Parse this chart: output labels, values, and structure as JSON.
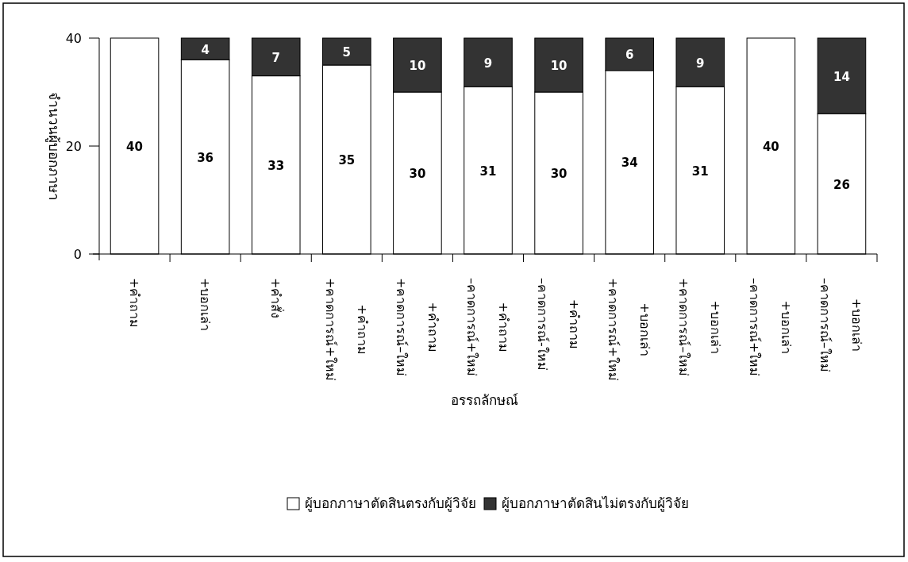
{
  "chart_data": {
    "type": "bar",
    "stacked": true,
    "xlabel": "อรรถลักษณ์",
    "ylabel": "จำนวนผู้บอกภาษา",
    "categories": [
      "+คำถาม",
      "+บอกเล่า",
      "+คำสั่ง",
      "+คาดการณ์+ใหม่\n+คำถาม",
      "+คาดการณ์–ใหม่\n+คำถาม",
      "–คาดการณ์+ใหม่\n+คำถาม",
      "–คาดการณ์-ใหม่\n+คำถาม",
      "+คาดการณ์+ใหม่\n+บอกเล่า",
      "+คาดการณ์–ใหม่\n+บอกเล่า",
      "–คาดการณ์+ใหม่\n+บอกเล่า",
      "–คาดการณ์–ใหม่\n+บอกเล่า"
    ],
    "series": [
      {
        "name": "ผู้บอกภาษาตัดสินตรงกับผู้วิจัย",
        "color": "#ffffff",
        "values": [
          40,
          36,
          33,
          35,
          30,
          31,
          30,
          34,
          31,
          40,
          26
        ],
        "value_labels": [
          "40",
          "36",
          "33",
          "35",
          "30",
          "31",
          "30",
          "34",
          "31",
          "40",
          "26"
        ]
      },
      {
        "name": "ผู้บอกภาษาตัดสินไม่ตรงกับผู้วิจัย",
        "color": "#333333",
        "values": [
          0,
          4,
          7,
          5,
          10,
          9,
          10,
          6,
          9,
          0,
          14
        ],
        "value_labels": [
          null,
          "4",
          "7",
          "5",
          "10",
          "9",
          "10",
          "6",
          "9",
          null,
          "14"
        ]
      }
    ],
    "ylim": [
      0,
      40
    ],
    "yticks": [
      0,
      20,
      40
    ],
    "grid": false,
    "legend": "bottom"
  }
}
